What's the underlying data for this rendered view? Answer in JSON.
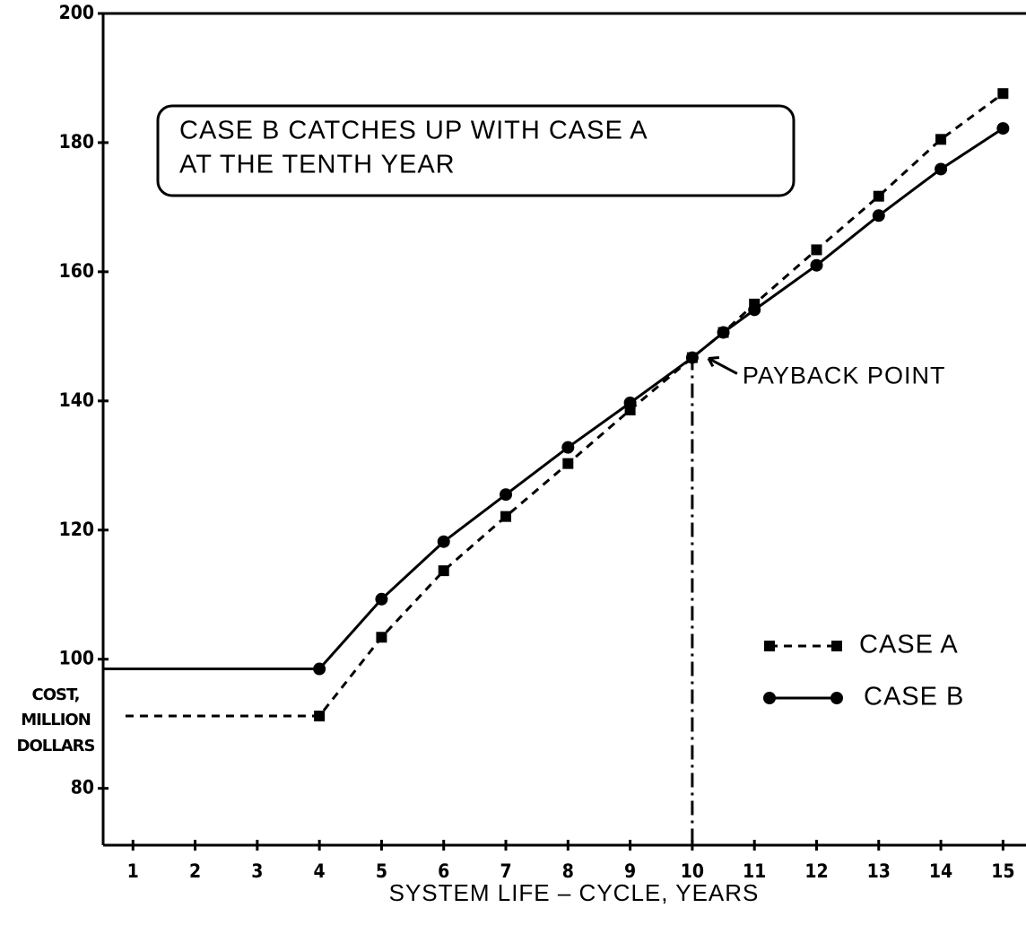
{
  "chart_data": {
    "type": "line",
    "xlabel": "SYSTEM  LIFE – CYCLE,  YEARS",
    "ylabel": [
      "COST,",
      "MILLION",
      "DOLLARS"
    ],
    "xlim": [
      0.52,
      15.37
    ],
    "ylim": [
      71.2,
      200
    ],
    "xticks": [
      1,
      2,
      3,
      4,
      5,
      6,
      7,
      8,
      9,
      10,
      11,
      12,
      13,
      14,
      15
    ],
    "yticks": [
      80,
      100,
      120,
      140,
      160,
      180,
      200
    ],
    "annotation_box": [
      "CASE B CATCHES UP WITH CASE A",
      "AT THE TENTH YEAR"
    ],
    "payback_point": {
      "label": "PAYBACK POINT",
      "x": 10,
      "y": 147
    },
    "series": [
      {
        "name": "CASE A",
        "color": "#000000",
        "style": "dotted",
        "marker": "square",
        "x": [
          0.88,
          4,
          5,
          6,
          7,
          8,
          9,
          10,
          10.5,
          11,
          12,
          13,
          14,
          15
        ],
        "values": [
          91.2,
          91.2,
          103.4,
          113.7,
          122.1,
          130.3,
          138.6,
          146.7,
          150.6,
          155,
          163.4,
          171.7,
          180.5,
          187.6
        ]
      },
      {
        "name": "CASE B",
        "color": "#000000",
        "style": "solid",
        "marker": "circle",
        "x": [
          0.52,
          4,
          5,
          6,
          7,
          8,
          9,
          10,
          10.5,
          11,
          12,
          13,
          14,
          15
        ],
        "values": [
          98.5,
          98.5,
          109.3,
          118.2,
          125.5,
          132.8,
          139.7,
          146.7,
          150.6,
          154.1,
          161,
          168.7,
          175.9,
          182.2
        ]
      }
    ]
  }
}
